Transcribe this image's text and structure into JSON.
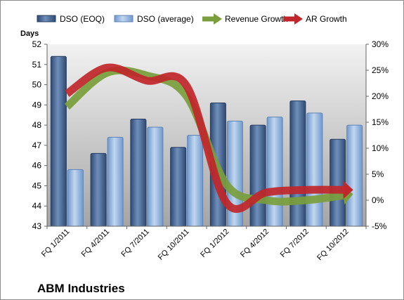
{
  "chart_data": {
    "type": "bar",
    "title": "ABM Industries",
    "ylabel": "Days",
    "ylim": [
      43,
      52
    ],
    "yticks": [
      43,
      44,
      45,
      46,
      47,
      48,
      49,
      50,
      51,
      52
    ],
    "y2lim": [
      -5,
      30
    ],
    "y2ticks": [
      "-5%",
      "0%",
      "5%",
      "10%",
      "15%",
      "20%",
      "25%",
      "30%"
    ],
    "categories": [
      "FQ 1/2011",
      "FQ 4/2011",
      "FQ 7/2011",
      "FQ 10/2011",
      "FQ 1/2012",
      "FQ 4/2012",
      "FQ 7/2012",
      "FQ 10/2012"
    ],
    "legend_position": "top",
    "grid": false,
    "series": [
      {
        "name": "DSO (EOQ)",
        "kind": "bar",
        "axis": "left",
        "color": "#4a6894",
        "values": [
          51.4,
          46.6,
          48.3,
          46.9,
          49.1,
          48.0,
          49.2,
          47.3
        ]
      },
      {
        "name": "DSO (average)",
        "kind": "bar",
        "axis": "left",
        "color": "#93b4dd",
        "values": [
          45.8,
          47.4,
          47.9,
          47.5,
          48.2,
          48.4,
          48.6,
          48.0
        ]
      },
      {
        "name": "Revenue Growth",
        "kind": "line",
        "axis": "right",
        "color": "#7a9e3c",
        "values": [
          18.0,
          24.5,
          24.0,
          20.0,
          3.0,
          0.0,
          0.0,
          1.0
        ]
      },
      {
        "name": "AR Growth",
        "kind": "line",
        "axis": "right",
        "color": "#c0262a",
        "values": [
          20.5,
          25.5,
          23.0,
          22.0,
          -0.5,
          1.5,
          2.0,
          2.0
        ]
      }
    ]
  }
}
